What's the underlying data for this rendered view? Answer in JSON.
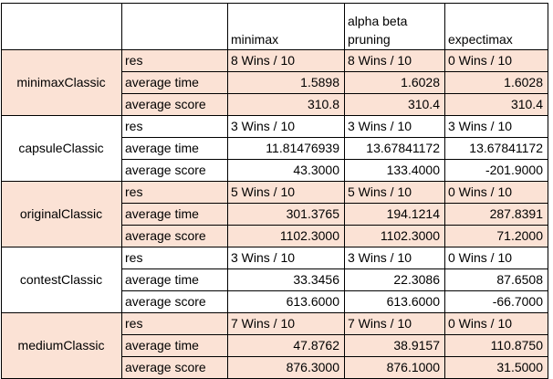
{
  "header": [
    "",
    "",
    "minimax",
    "alpha beta\npruning",
    "expectimax"
  ],
  "row_labels": [
    "res",
    "average time",
    "average score"
  ],
  "groups": [
    {
      "name": "minimaxClassic",
      "shaded": true,
      "values": [
        [
          "8 Wins / 10",
          "8 Wins / 10",
          "0 Wins / 10"
        ],
        [
          "1.5898",
          "1.6028",
          "1.6028"
        ],
        [
          "310.8",
          "310.4",
          "310.4"
        ]
      ]
    },
    {
      "name": "capsuleClassic",
      "shaded": false,
      "values": [
        [
          "3 Wins / 10",
          "3 Wins / 10",
          "3 Wins / 10"
        ],
        [
          "11.81476939",
          "13.67841172",
          "13.67841172"
        ],
        [
          "43.3000",
          "133.4000",
          "-201.9000"
        ]
      ]
    },
    {
      "name": "originalClassic",
      "shaded": true,
      "values": [
        [
          "5 Wins / 10",
          "5 Wins / 10",
          "0 Wins / 10"
        ],
        [
          "301.3765",
          "194.1214",
          "287.8391"
        ],
        [
          "1102.3000",
          "1102.3000",
          "71.2000"
        ]
      ]
    },
    {
      "name": "contestClassic",
      "shaded": false,
      "values": [
        [
          "3 Wins / 10",
          "3 Wins / 10",
          "0 Wins / 10"
        ],
        [
          "33.3456",
          "22.3086",
          "87.6508"
        ],
        [
          "613.6000",
          "613.6000",
          "-66.7000"
        ]
      ]
    },
    {
      "name": "mediumClassic",
      "shaded": true,
      "values": [
        [
          "7 Wins / 10",
          "7 Wins / 10",
          "0 Wins / 10"
        ],
        [
          "47.8762",
          "38.9157",
          "110.8750"
        ],
        [
          "876.3000",
          "876.1000",
          "31.5000"
        ]
      ]
    }
  ],
  "colors": {
    "shade": "#fbe2d5",
    "plain": "#ffffff",
    "border": "#000000"
  }
}
